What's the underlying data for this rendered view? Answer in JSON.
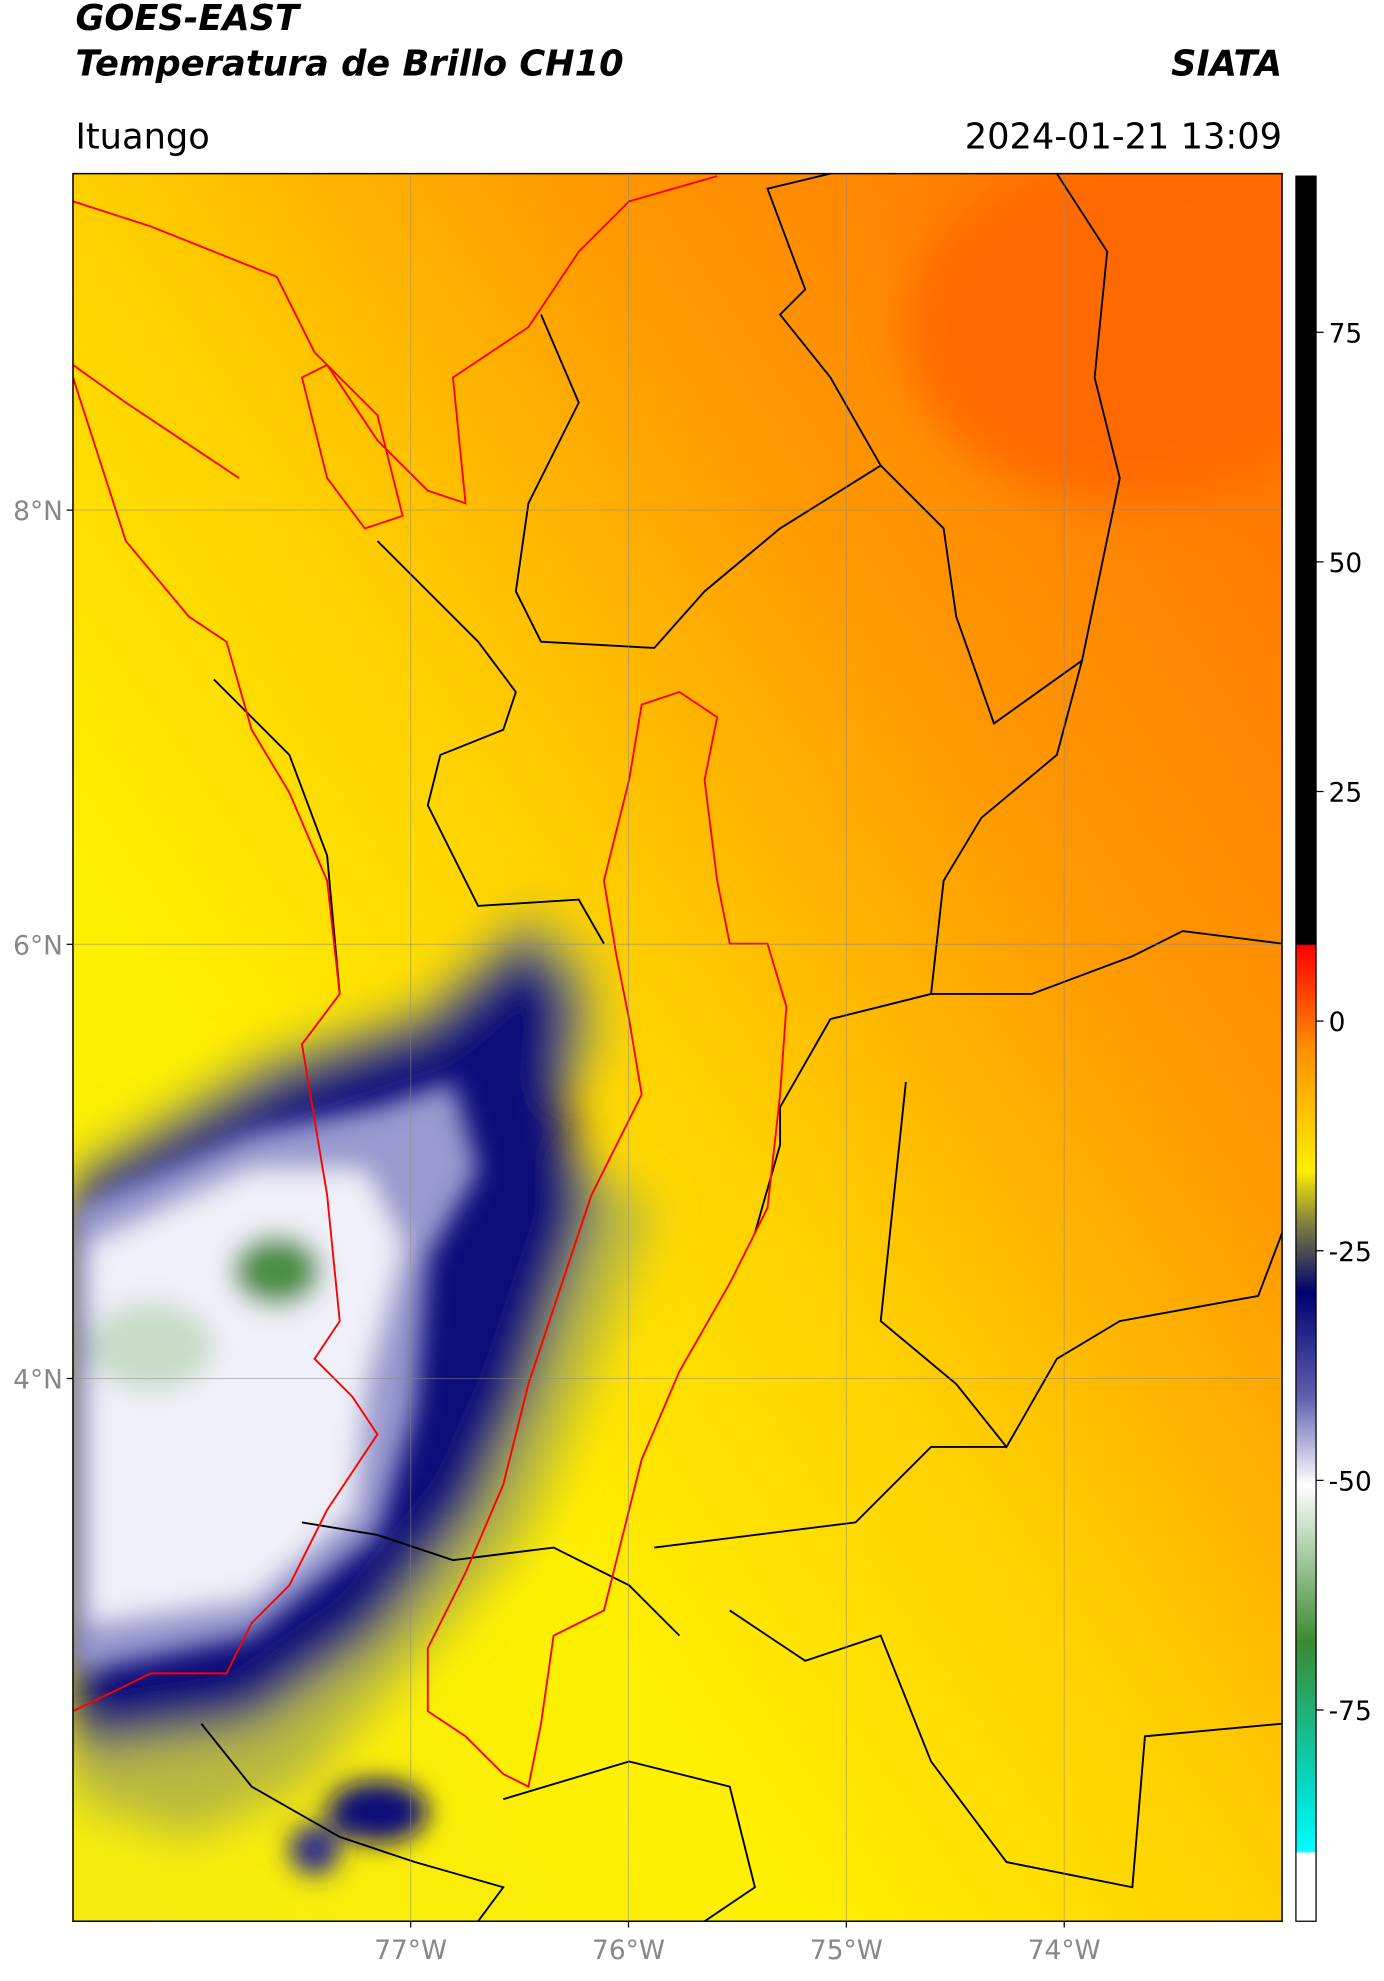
{
  "header": {
    "title_line1": "GOES-EAST",
    "title_line2": "Temperatura de Brillo CH10",
    "brand": "SIATA",
    "place": "Ituango",
    "datetime": "2024-01-21 13:09"
  },
  "map": {
    "xlim": [
      -78.55,
      -73
    ],
    "ylim": [
      1.5,
      9.55
    ],
    "xticks": [
      {
        "value": -77,
        "label": "77°W"
      },
      {
        "value": -76,
        "label": "76°W"
      },
      {
        "value": -75,
        "label": "75°W"
      },
      {
        "value": -74,
        "label": "74°W"
      }
    ],
    "yticks": [
      {
        "value": 8,
        "label": "8°N"
      },
      {
        "value": 6,
        "label": "6°N"
      },
      {
        "value": 4,
        "label": "4°N"
      }
    ],
    "grid": true
  },
  "colorbar": {
    "lim": [
      -98,
      92
    ],
    "ticks": [
      75,
      50,
      25,
      0,
      -25,
      -50,
      -75
    ]
  }
}
